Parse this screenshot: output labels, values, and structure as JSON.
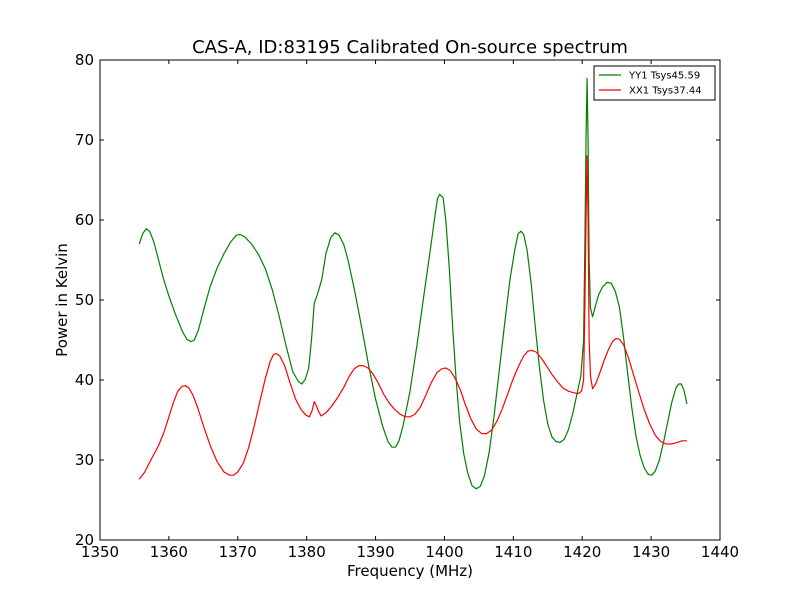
{
  "chart_data": {
    "type": "line",
    "title": "CAS-A, ID:83195 Calibrated On-source spectrum",
    "xlabel": "Frequency (MHz)",
    "ylabel": "Power in Kelvin",
    "xlim": [
      1350,
      1440
    ],
    "ylim": [
      20,
      80
    ],
    "xticks": [
      1350,
      1360,
      1370,
      1380,
      1390,
      1400,
      1410,
      1420,
      1430,
      1440
    ],
    "yticks": [
      20,
      30,
      40,
      50,
      60,
      70,
      80
    ],
    "grid": false,
    "legend_position": "top-right",
    "series": [
      {
        "name": "YY1 Tsys45.59",
        "color": "#008000",
        "points": [
          [
            1355.7,
            57.0
          ],
          [
            1356.2,
            58.3
          ],
          [
            1356.7,
            58.9
          ],
          [
            1357.2,
            58.6
          ],
          [
            1357.8,
            57.3
          ],
          [
            1358.5,
            55.0
          ],
          [
            1359.2,
            52.7
          ],
          [
            1360.0,
            50.5
          ],
          [
            1361.0,
            48.1
          ],
          [
            1362.0,
            46.0
          ],
          [
            1362.6,
            45.1
          ],
          [
            1363.2,
            44.8
          ],
          [
            1363.7,
            45.0
          ],
          [
            1364.3,
            46.3
          ],
          [
            1365.0,
            48.6
          ],
          [
            1366.0,
            51.7
          ],
          [
            1367.0,
            54.0
          ],
          [
            1368.0,
            55.8
          ],
          [
            1369.0,
            57.3
          ],
          [
            1369.8,
            58.1
          ],
          [
            1370.3,
            58.2
          ],
          [
            1371.0,
            57.9
          ],
          [
            1372.0,
            57.0
          ],
          [
            1373.0,
            55.7
          ],
          [
            1374.0,
            53.9
          ],
          [
            1375.0,
            51.3
          ],
          [
            1376.0,
            48.0
          ],
          [
            1377.0,
            44.3
          ],
          [
            1378.0,
            41.0
          ],
          [
            1378.8,
            39.8
          ],
          [
            1379.3,
            39.5
          ],
          [
            1379.8,
            40.1
          ],
          [
            1380.3,
            41.5
          ],
          [
            1380.7,
            45.0
          ],
          [
            1381.1,
            49.6
          ],
          [
            1381.6,
            50.8
          ],
          [
            1382.2,
            52.6
          ],
          [
            1382.8,
            55.8
          ],
          [
            1383.5,
            57.8
          ],
          [
            1384.1,
            58.4
          ],
          [
            1384.7,
            58.1
          ],
          [
            1385.4,
            56.9
          ],
          [
            1386.0,
            55.0
          ],
          [
            1387.0,
            51.0
          ],
          [
            1388.0,
            46.5
          ],
          [
            1389.0,
            41.8
          ],
          [
            1390.0,
            37.6
          ],
          [
            1391.0,
            34.3
          ],
          [
            1391.8,
            32.3
          ],
          [
            1392.4,
            31.6
          ],
          [
            1392.9,
            31.6
          ],
          [
            1393.4,
            32.4
          ],
          [
            1394.0,
            34.3
          ],
          [
            1395.0,
            38.6
          ],
          [
            1396.0,
            44.3
          ],
          [
            1397.0,
            50.5
          ],
          [
            1398.0,
            56.6
          ],
          [
            1398.6,
            60.4
          ],
          [
            1399.0,
            62.7
          ],
          [
            1399.3,
            63.2
          ],
          [
            1399.8,
            62.8
          ],
          [
            1400.2,
            60.0
          ],
          [
            1400.7,
            54.0
          ],
          [
            1401.2,
            46.5
          ],
          [
            1401.7,
            40.0
          ],
          [
            1402.2,
            34.8
          ],
          [
            1402.8,
            30.8
          ],
          [
            1403.4,
            28.3
          ],
          [
            1404.0,
            26.8
          ],
          [
            1404.6,
            26.4
          ],
          [
            1405.2,
            26.7
          ],
          [
            1405.8,
            28.0
          ],
          [
            1406.5,
            31.0
          ],
          [
            1407.2,
            35.5
          ],
          [
            1408.0,
            41.5
          ],
          [
            1408.8,
            47.5
          ],
          [
            1409.5,
            52.5
          ],
          [
            1410.2,
            56.2
          ],
          [
            1410.7,
            58.3
          ],
          [
            1411.1,
            58.6
          ],
          [
            1411.5,
            58.2
          ],
          [
            1412.0,
            56.2
          ],
          [
            1412.6,
            52.0
          ],
          [
            1413.2,
            46.5
          ],
          [
            1413.8,
            41.5
          ],
          [
            1414.4,
            37.4
          ],
          [
            1415.0,
            34.5
          ],
          [
            1415.6,
            32.9
          ],
          [
            1416.2,
            32.3
          ],
          [
            1416.8,
            32.2
          ],
          [
            1417.4,
            32.6
          ],
          [
            1418.0,
            33.8
          ],
          [
            1418.6,
            35.7
          ],
          [
            1419.2,
            38.1
          ],
          [
            1419.8,
            40.5
          ],
          [
            1420.2,
            45.0
          ],
          [
            1420.4,
            58.0
          ],
          [
            1420.55,
            70.0
          ],
          [
            1420.7,
            77.7
          ],
          [
            1420.85,
            70.0
          ],
          [
            1421.0,
            55.0
          ],
          [
            1421.2,
            49.0
          ],
          [
            1421.5,
            47.9
          ],
          [
            1421.9,
            49.2
          ],
          [
            1422.4,
            50.7
          ],
          [
            1423.0,
            51.7
          ],
          [
            1423.6,
            52.2
          ],
          [
            1424.2,
            52.1
          ],
          [
            1424.8,
            51.1
          ],
          [
            1425.4,
            49.1
          ],
          [
            1426.0,
            45.3
          ],
          [
            1426.6,
            40.8
          ],
          [
            1427.2,
            36.5
          ],
          [
            1427.8,
            33.0
          ],
          [
            1428.4,
            30.6
          ],
          [
            1429.0,
            29.0
          ],
          [
            1429.6,
            28.2
          ],
          [
            1430.1,
            28.1
          ],
          [
            1430.6,
            28.6
          ],
          [
            1431.2,
            30.0
          ],
          [
            1431.8,
            32.2
          ],
          [
            1432.4,
            34.7
          ],
          [
            1433.0,
            37.2
          ],
          [
            1433.6,
            39.0
          ],
          [
            1434.0,
            39.5
          ],
          [
            1434.4,
            39.5
          ],
          [
            1434.8,
            38.6
          ],
          [
            1435.2,
            37.0
          ]
        ]
      },
      {
        "name": "XX1 Tsys37.44",
        "color": "#ff0000",
        "points": [
          [
            1355.7,
            27.6
          ],
          [
            1356.5,
            28.5
          ],
          [
            1357.5,
            30.2
          ],
          [
            1358.5,
            31.8
          ],
          [
            1359.3,
            33.5
          ],
          [
            1360.0,
            35.4
          ],
          [
            1360.7,
            37.3
          ],
          [
            1361.3,
            38.6
          ],
          [
            1361.9,
            39.2
          ],
          [
            1362.4,
            39.3
          ],
          [
            1362.9,
            39.0
          ],
          [
            1363.5,
            38.1
          ],
          [
            1364.2,
            36.5
          ],
          [
            1365.0,
            34.3
          ],
          [
            1366.0,
            31.8
          ],
          [
            1367.0,
            29.8
          ],
          [
            1368.0,
            28.5
          ],
          [
            1368.8,
            28.1
          ],
          [
            1369.4,
            28.1
          ],
          [
            1370.0,
            28.5
          ],
          [
            1370.8,
            29.6
          ],
          [
            1371.6,
            31.6
          ],
          [
            1372.4,
            34.3
          ],
          [
            1373.2,
            37.3
          ],
          [
            1374.0,
            40.2
          ],
          [
            1374.7,
            42.3
          ],
          [
            1375.2,
            43.2
          ],
          [
            1375.6,
            43.3
          ],
          [
            1376.1,
            43.0
          ],
          [
            1376.8,
            41.8
          ],
          [
            1377.6,
            39.6
          ],
          [
            1378.4,
            37.6
          ],
          [
            1379.2,
            36.3
          ],
          [
            1379.9,
            35.6
          ],
          [
            1380.4,
            35.4
          ],
          [
            1380.8,
            36.2
          ],
          [
            1381.1,
            37.3
          ],
          [
            1381.4,
            36.8
          ],
          [
            1381.7,
            36.1
          ],
          [
            1382.1,
            35.5
          ],
          [
            1382.8,
            35.9
          ],
          [
            1383.6,
            36.7
          ],
          [
            1384.5,
            37.8
          ],
          [
            1385.4,
            39.1
          ],
          [
            1386.2,
            40.5
          ],
          [
            1386.9,
            41.4
          ],
          [
            1387.6,
            41.8
          ],
          [
            1388.2,
            41.8
          ],
          [
            1388.9,
            41.5
          ],
          [
            1389.6,
            40.8
          ],
          [
            1390.4,
            39.6
          ],
          [
            1391.2,
            38.2
          ],
          [
            1392.0,
            37.1
          ],
          [
            1392.8,
            36.3
          ],
          [
            1393.6,
            35.7
          ],
          [
            1394.3,
            35.4
          ],
          [
            1395.0,
            35.4
          ],
          [
            1395.7,
            35.7
          ],
          [
            1396.5,
            36.6
          ],
          [
            1397.3,
            38.1
          ],
          [
            1398.1,
            39.7
          ],
          [
            1398.9,
            40.9
          ],
          [
            1399.6,
            41.4
          ],
          [
            1400.2,
            41.5
          ],
          [
            1400.8,
            41.2
          ],
          [
            1401.5,
            40.3
          ],
          [
            1402.3,
            38.8
          ],
          [
            1403.0,
            37.0
          ],
          [
            1403.8,
            35.2
          ],
          [
            1404.6,
            33.9
          ],
          [
            1405.4,
            33.3
          ],
          [
            1406.1,
            33.3
          ],
          [
            1406.8,
            33.7
          ],
          [
            1407.6,
            34.8
          ],
          [
            1408.4,
            36.4
          ],
          [
            1409.2,
            38.3
          ],
          [
            1410.0,
            40.2
          ],
          [
            1410.8,
            41.8
          ],
          [
            1411.5,
            43.0
          ],
          [
            1412.1,
            43.6
          ],
          [
            1412.7,
            43.7
          ],
          [
            1413.3,
            43.5
          ],
          [
            1414.0,
            42.8
          ],
          [
            1414.8,
            41.8
          ],
          [
            1415.6,
            40.7
          ],
          [
            1416.4,
            39.8
          ],
          [
            1417.2,
            39.0
          ],
          [
            1418.0,
            38.6
          ],
          [
            1418.8,
            38.4
          ],
          [
            1419.4,
            38.3
          ],
          [
            1419.9,
            38.6
          ],
          [
            1420.2,
            40.0
          ],
          [
            1420.4,
            50.0
          ],
          [
            1420.55,
            60.0
          ],
          [
            1420.7,
            68.0
          ],
          [
            1420.85,
            60.0
          ],
          [
            1421.0,
            45.0
          ],
          [
            1421.2,
            40.5
          ],
          [
            1421.5,
            38.9
          ],
          [
            1422.0,
            39.6
          ],
          [
            1422.6,
            41.0
          ],
          [
            1423.2,
            42.5
          ],
          [
            1423.8,
            43.8
          ],
          [
            1424.4,
            44.8
          ],
          [
            1424.9,
            45.2
          ],
          [
            1425.4,
            45.1
          ],
          [
            1426.0,
            44.4
          ],
          [
            1426.7,
            42.8
          ],
          [
            1427.4,
            40.8
          ],
          [
            1428.2,
            38.5
          ],
          [
            1429.0,
            36.3
          ],
          [
            1429.8,
            34.5
          ],
          [
            1430.6,
            33.1
          ],
          [
            1431.4,
            32.3
          ],
          [
            1432.2,
            32.0
          ],
          [
            1433.0,
            32.0
          ],
          [
            1433.8,
            32.2
          ],
          [
            1434.5,
            32.4
          ],
          [
            1435.2,
            32.4
          ]
        ]
      }
    ]
  }
}
